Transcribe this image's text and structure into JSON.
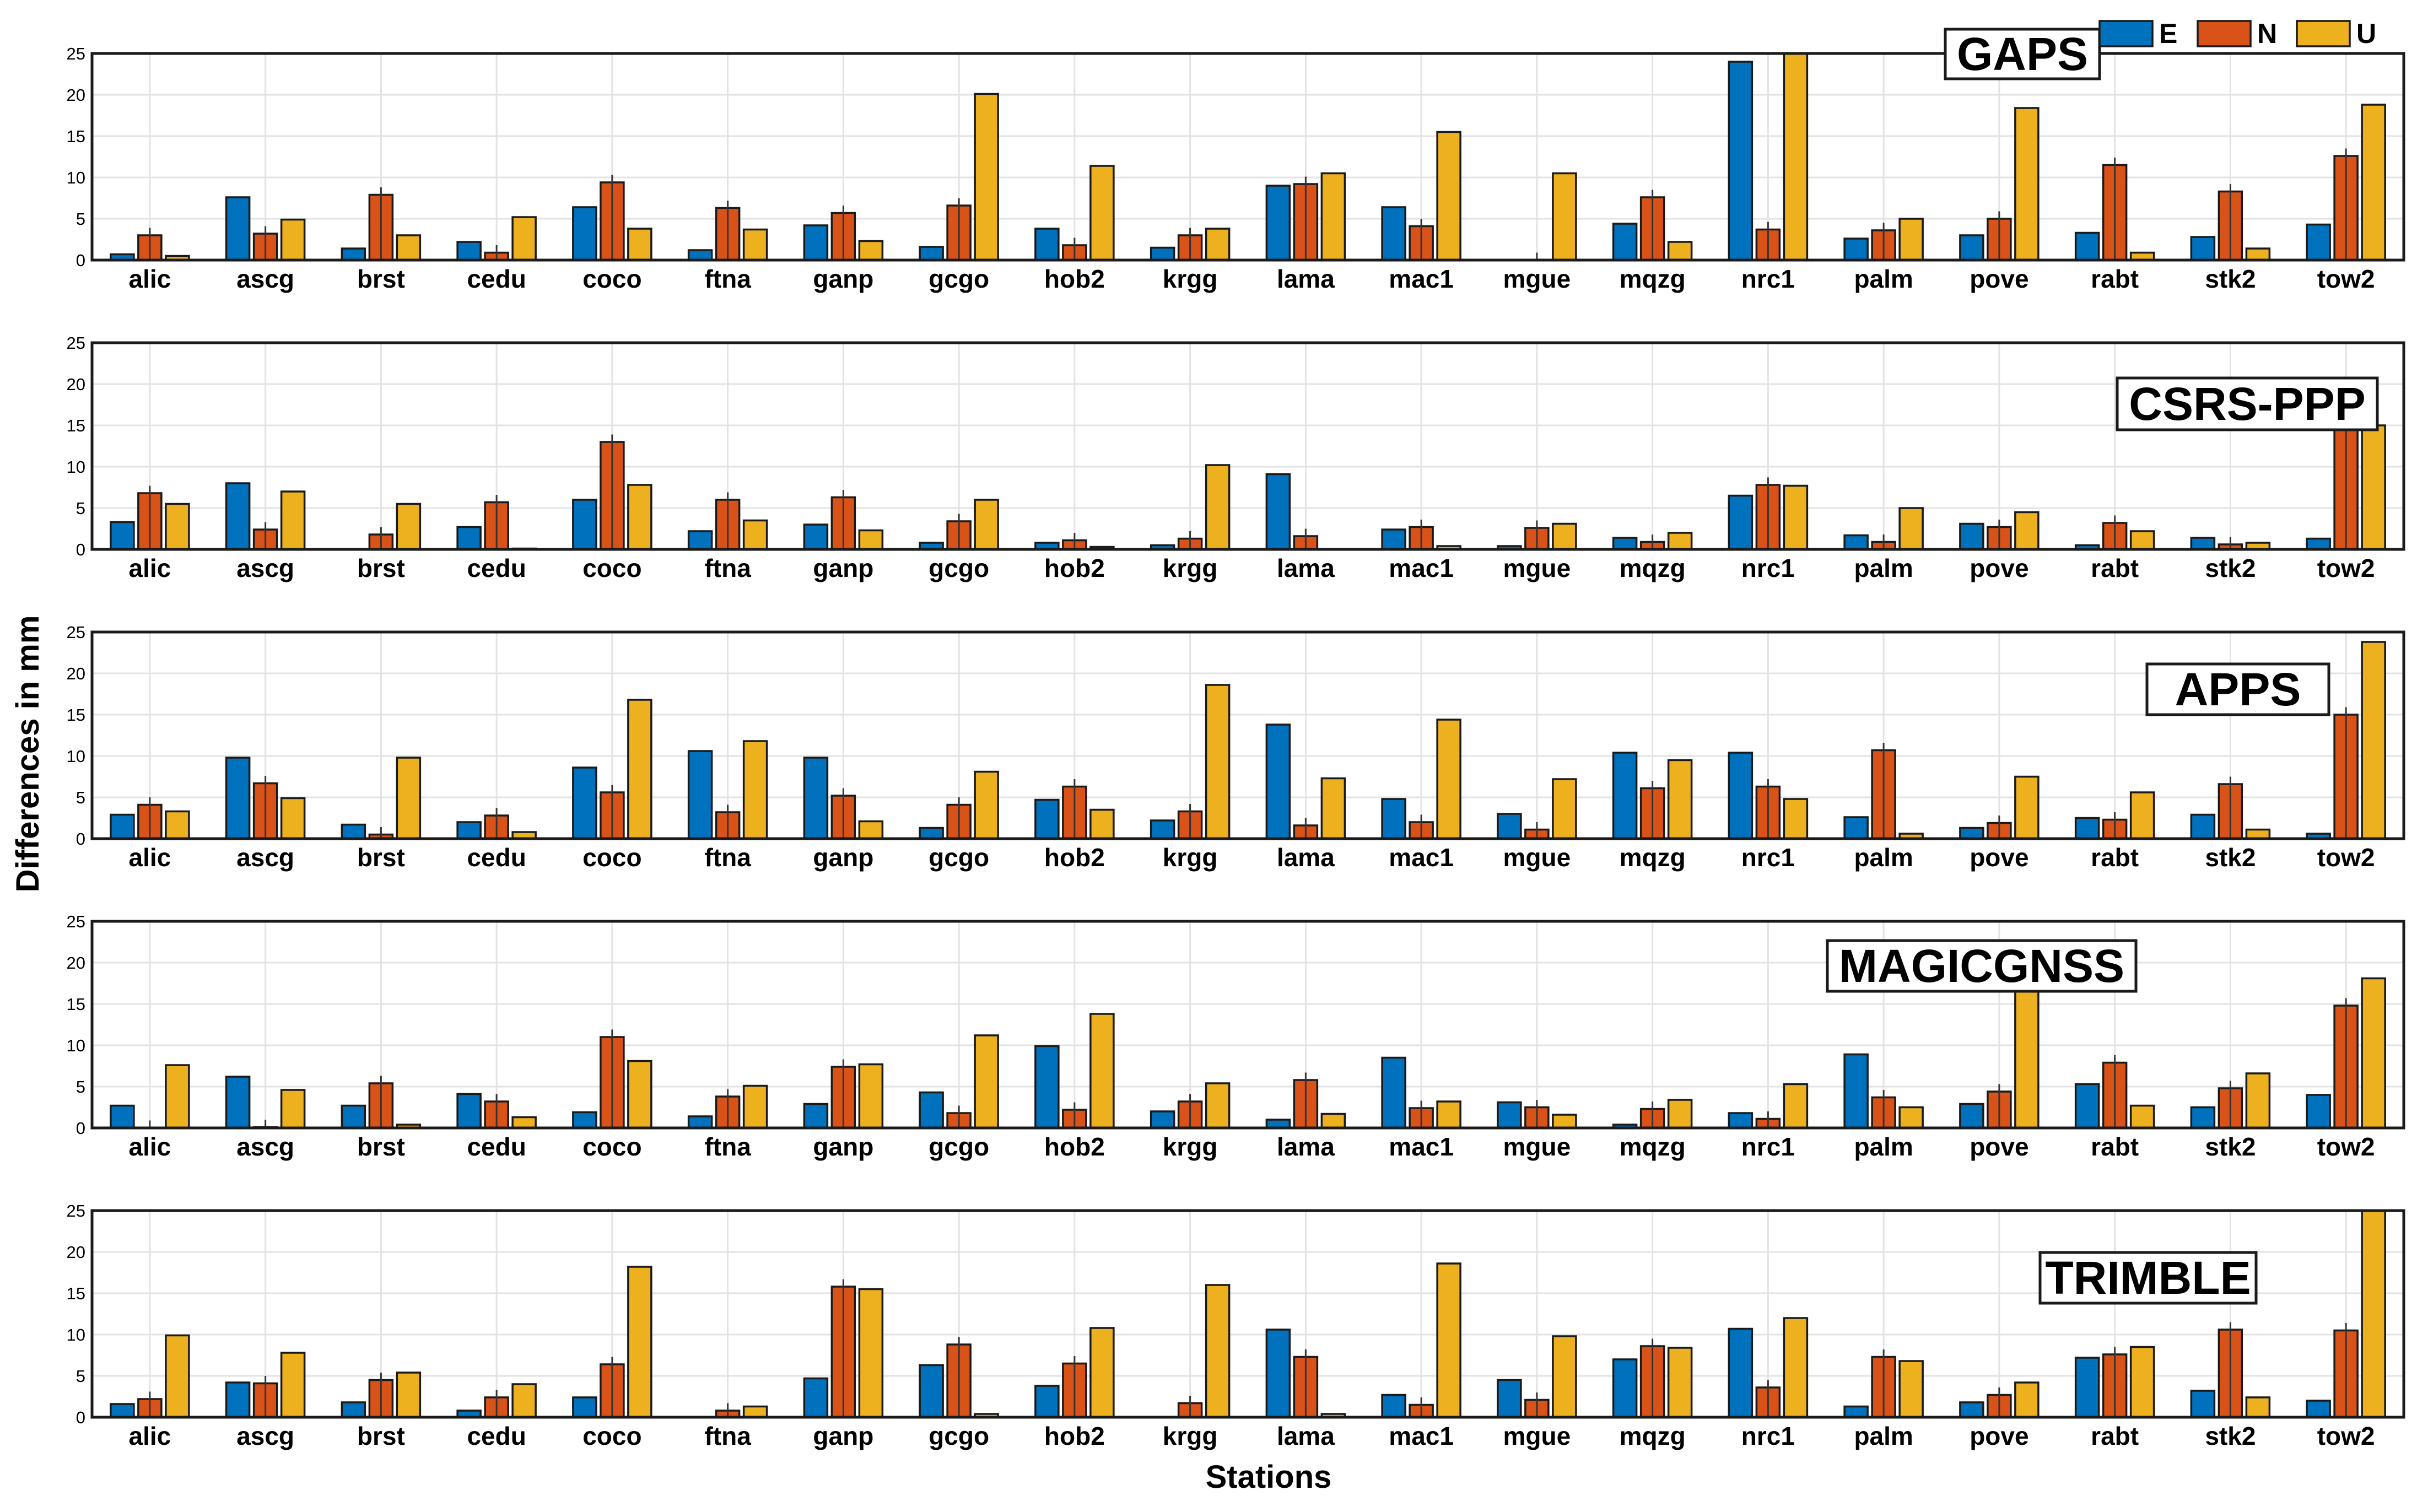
{
  "colors": {
    "E": "#0072BD",
    "N": "#D95319",
    "U": "#EDB120"
  },
  "legend": [
    {
      "key": "E",
      "label": "E"
    },
    {
      "key": "N",
      "label": "N"
    },
    {
      "key": "U",
      "label": "U"
    }
  ],
  "ylabel": "Differences in mm",
  "xlabel": "Stations",
  "chart_data": [
    {
      "type": "bar",
      "title": "GAPS",
      "categories": [
        "alic",
        "ascg",
        "brst",
        "cedu",
        "coco",
        "ftna",
        "ganp",
        "gcgo",
        "hob2",
        "krgg",
        "lama",
        "mac1",
        "mgue",
        "mqzg",
        "nrc1",
        "palm",
        "pove",
        "rabt",
        "stk2",
        "tow2"
      ],
      "ylim": [
        0,
        25
      ],
      "yticks": [
        0,
        5,
        10,
        15,
        20,
        25
      ],
      "grid": true,
      "series": [
        {
          "name": "E",
          "values": [
            0.7,
            7.6,
            1.4,
            2.2,
            6.4,
            1.2,
            4.2,
            1.6,
            3.8,
            1.5,
            9.0,
            6.4,
            0.0,
            4.4,
            24.0,
            2.6,
            3.0,
            3.3,
            2.8,
            4.3
          ]
        },
        {
          "name": "N",
          "values": [
            3.0,
            3.2,
            7.9,
            0.9,
            9.4,
            6.3,
            5.7,
            6.6,
            1.8,
            3.0,
            9.2,
            4.1,
            0.0,
            7.6,
            3.7,
            3.6,
            5.0,
            11.5,
            8.3,
            12.6
          ]
        },
        {
          "name": "U",
          "values": [
            0.5,
            4.9,
            3.0,
            5.2,
            3.8,
            3.7,
            2.3,
            20.1,
            11.4,
            3.8,
            10.5,
            15.5,
            10.5,
            2.2,
            25.0,
            5.0,
            18.4,
            0.9,
            1.4,
            18.8
          ]
        }
      ]
    },
    {
      "type": "bar",
      "title": "CSRS-PPP",
      "categories": [
        "alic",
        "ascg",
        "brst",
        "cedu",
        "coco",
        "ftna",
        "ganp",
        "gcgo",
        "hob2",
        "krgg",
        "lama",
        "mac1",
        "mgue",
        "mqzg",
        "nrc1",
        "palm",
        "pove",
        "rabt",
        "stk2",
        "tow2"
      ],
      "ylim": [
        0,
        25
      ],
      "yticks": [
        0,
        5,
        10,
        15,
        20,
        25
      ],
      "grid": true,
      "series": [
        {
          "name": "E",
          "values": [
            3.3,
            8.0,
            0.0,
            2.7,
            6.0,
            2.2,
            3.0,
            0.8,
            0.8,
            0.5,
            9.1,
            2.4,
            0.4,
            1.4,
            6.5,
            1.7,
            3.1,
            0.5,
            1.4,
            1.3
          ]
        },
        {
          "name": "N",
          "values": [
            6.8,
            2.4,
            1.8,
            5.7,
            13.0,
            6.0,
            6.3,
            3.4,
            1.1,
            1.3,
            1.6,
            2.7,
            2.6,
            0.9,
            7.8,
            0.9,
            2.7,
            3.2,
            0.6,
            15.0
          ]
        },
        {
          "name": "U",
          "values": [
            5.5,
            7.0,
            5.5,
            0.1,
            7.8,
            3.5,
            2.3,
            6.0,
            0.3,
            10.2,
            0.0,
            0.4,
            3.1,
            2.0,
            7.7,
            5.0,
            4.5,
            2.2,
            0.8,
            15.0
          ]
        }
      ]
    },
    {
      "type": "bar",
      "title": "APPS",
      "categories": [
        "alic",
        "ascg",
        "brst",
        "cedu",
        "coco",
        "ftna",
        "ganp",
        "gcgo",
        "hob2",
        "krgg",
        "lama",
        "mac1",
        "mgue",
        "mqzg",
        "nrc1",
        "palm",
        "pove",
        "rabt",
        "stk2",
        "tow2"
      ],
      "ylim": [
        0,
        25
      ],
      "yticks": [
        0,
        5,
        10,
        15,
        20,
        25
      ],
      "grid": true,
      "series": [
        {
          "name": "E",
          "values": [
            2.9,
            9.8,
            1.7,
            2.0,
            8.6,
            10.6,
            9.8,
            1.3,
            4.7,
            2.2,
            13.8,
            4.8,
            3.0,
            10.4,
            10.4,
            2.6,
            1.3,
            2.5,
            2.9,
            0.6
          ]
        },
        {
          "name": "N",
          "values": [
            4.1,
            6.7,
            0.5,
            2.8,
            5.6,
            3.2,
            5.2,
            4.1,
            6.3,
            3.3,
            1.6,
            2.0,
            1.1,
            6.1,
            6.3,
            10.7,
            1.9,
            2.3,
            6.6,
            15.0
          ]
        },
        {
          "name": "U",
          "values": [
            3.3,
            4.9,
            9.8,
            0.8,
            16.8,
            11.8,
            2.1,
            8.1,
            3.5,
            18.6,
            7.3,
            14.4,
            7.2,
            9.5,
            4.8,
            0.6,
            7.5,
            5.6,
            1.1,
            23.8
          ]
        }
      ]
    },
    {
      "type": "bar",
      "title": "MAGICGNSS",
      "categories": [
        "alic",
        "ascg",
        "brst",
        "cedu",
        "coco",
        "ftna",
        "ganp",
        "gcgo",
        "hob2",
        "krgg",
        "lama",
        "mac1",
        "mgue",
        "mqzg",
        "nrc1",
        "palm",
        "pove",
        "rabt",
        "stk2",
        "tow2"
      ],
      "ylim": [
        0,
        25
      ],
      "yticks": [
        0,
        5,
        10,
        15,
        20,
        25
      ],
      "grid": true,
      "series": [
        {
          "name": "E",
          "values": [
            2.7,
            6.2,
            2.7,
            4.1,
            1.9,
            1.4,
            2.9,
            4.3,
            9.9,
            2.0,
            1.0,
            8.5,
            3.1,
            0.4,
            1.8,
            8.9,
            2.9,
            5.3,
            2.5,
            4.0
          ]
        },
        {
          "name": "N",
          "values": [
            0.0,
            0.1,
            5.4,
            3.2,
            11.0,
            3.8,
            7.4,
            1.8,
            2.2,
            3.2,
            5.8,
            2.4,
            2.5,
            2.3,
            1.1,
            3.7,
            4.4,
            7.9,
            4.8,
            14.8
          ]
        },
        {
          "name": "U",
          "values": [
            7.6,
            4.6,
            0.4,
            1.3,
            8.1,
            5.1,
            7.7,
            11.2,
            13.8,
            5.4,
            1.7,
            3.2,
            1.6,
            3.4,
            5.3,
            2.5,
            20.1,
            2.7,
            6.6,
            18.1
          ]
        }
      ]
    },
    {
      "type": "bar",
      "title": "TRIMBLE",
      "categories": [
        "alic",
        "ascg",
        "brst",
        "cedu",
        "coco",
        "ftna",
        "ganp",
        "gcgo",
        "hob2",
        "krgg",
        "lama",
        "mac1",
        "mgue",
        "mqzg",
        "nrc1",
        "palm",
        "pove",
        "rabt",
        "stk2",
        "tow2"
      ],
      "ylim": [
        0,
        25
      ],
      "yticks": [
        0,
        5,
        10,
        15,
        20,
        25
      ],
      "grid": true,
      "series": [
        {
          "name": "E",
          "values": [
            1.6,
            4.2,
            1.8,
            0.8,
            2.4,
            0.0,
            4.7,
            6.3,
            3.8,
            0.0,
            10.6,
            2.7,
            4.5,
            7.0,
            10.7,
            1.3,
            1.8,
            7.2,
            3.2,
            2.0
          ]
        },
        {
          "name": "N",
          "values": [
            2.2,
            4.1,
            4.5,
            2.4,
            6.4,
            0.8,
            15.8,
            8.8,
            6.5,
            1.7,
            7.3,
            1.5,
            2.1,
            8.6,
            3.6,
            7.3,
            2.7,
            7.6,
            10.6,
            10.5
          ]
        },
        {
          "name": "U",
          "values": [
            9.9,
            7.8,
            5.4,
            4.0,
            18.2,
            1.3,
            15.5,
            0.4,
            10.8,
            16.0,
            0.4,
            18.6,
            9.8,
            8.4,
            12.0,
            6.8,
            4.2,
            8.5,
            2.4,
            25.0
          ]
        }
      ]
    }
  ]
}
